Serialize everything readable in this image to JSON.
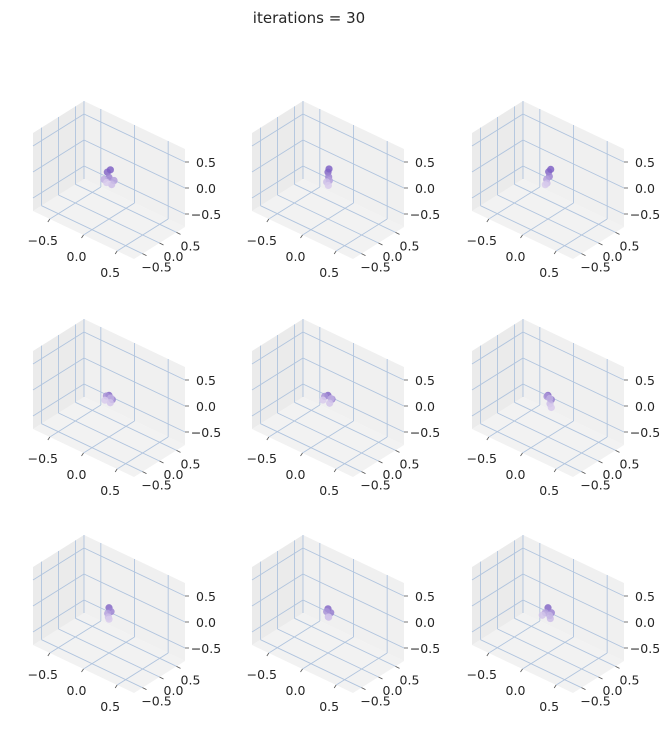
{
  "figure": {
    "title": "iterations = 30"
  },
  "chart_data": {
    "type": "scatter",
    "projection": "3d",
    "layout": {
      "rows": 3,
      "cols": 3
    },
    "title": "iterations = 30",
    "grid": true,
    "colors": {
      "grid": "#b0c4de",
      "pane_floor": "#f2f2f2",
      "pane_wall": "#ebebeb",
      "point_dark": "#7a5cc2",
      "point_light": "#efe6f7"
    },
    "axes": {
      "x": {
        "lim": [
          -0.75,
          0.75
        ],
        "ticks": [
          -0.5,
          0.0,
          0.5
        ],
        "tick_labels": [
          "−0.5",
          "0.0",
          "0.5"
        ]
      },
      "y": {
        "lim": [
          -0.75,
          0.75
        ],
        "ticks": [
          -0.5,
          0.0,
          0.5
        ],
        "tick_labels": [
          "−0.5",
          "0.0",
          "0.5"
        ]
      },
      "z": {
        "lim": [
          -0.75,
          0.75
        ],
        "ticks": [
          -0.5,
          0.0,
          0.5
        ],
        "tick_labels": [
          "−0.5",
          "0.0",
          "0.5"
        ]
      }
    },
    "panels": [
      {
        "panel": 1,
        "points": [
          [
            -0.05,
            0.05,
            0.1,
            0.9
          ],
          [
            0.0,
            0.0,
            0.05,
            0.7
          ],
          [
            0.05,
            0.05,
            0.0,
            0.5
          ],
          [
            -0.05,
            -0.05,
            0.0,
            0.4
          ],
          [
            0.05,
            -0.02,
            -0.05,
            0.3
          ],
          [
            -0.02,
            0.08,
            0.15,
            0.95
          ],
          [
            0.0,
            -0.07,
            -0.02,
            0.2
          ]
        ]
      },
      {
        "panel": 2,
        "points": [
          [
            0.0,
            0.0,
            0.15,
            0.9
          ],
          [
            0.0,
            0.02,
            0.05,
            0.7
          ],
          [
            0.02,
            0.0,
            0.0,
            0.5
          ],
          [
            -0.02,
            0.0,
            -0.05,
            0.3
          ],
          [
            0.0,
            0.03,
            0.2,
            0.95
          ],
          [
            0.02,
            -0.03,
            -0.08,
            0.2
          ]
        ]
      },
      {
        "panel": 3,
        "points": [
          [
            0.0,
            0.02,
            0.15,
            0.9
          ],
          [
            0.02,
            0.0,
            0.08,
            0.7
          ],
          [
            -0.02,
            0.0,
            0.0,
            0.5
          ],
          [
            0.0,
            -0.03,
            -0.05,
            0.3
          ],
          [
            0.02,
            0.04,
            0.2,
            0.95
          ],
          [
            -0.03,
            -0.02,
            -0.1,
            0.2
          ]
        ]
      },
      {
        "panel": 4,
        "points": [
          [
            0.0,
            0.0,
            0.05,
            0.9
          ],
          [
            0.05,
            0.0,
            0.0,
            0.7
          ],
          [
            -0.05,
            0.02,
            0.0,
            0.6
          ],
          [
            0.0,
            0.05,
            -0.02,
            0.4
          ],
          [
            0.04,
            -0.04,
            -0.05,
            0.25
          ],
          [
            -0.04,
            -0.04,
            -0.05,
            0.2
          ]
        ]
      },
      {
        "panel": 5,
        "points": [
          [
            0.0,
            0.0,
            0.05,
            0.9
          ],
          [
            0.05,
            0.02,
            0.0,
            0.7
          ],
          [
            -0.05,
            0.0,
            0.0,
            0.6
          ],
          [
            0.02,
            0.05,
            -0.02,
            0.4
          ],
          [
            0.05,
            -0.05,
            -0.05,
            0.25
          ],
          [
            -0.05,
            -0.05,
            -0.05,
            0.2
          ]
        ]
      },
      {
        "panel": 6,
        "points": [
          [
            0.0,
            0.0,
            0.05,
            0.9
          ],
          [
            0.05,
            0.0,
            0.0,
            0.75
          ],
          [
            -0.03,
            0.03,
            0.0,
            0.6
          ],
          [
            0.06,
            -0.06,
            -0.05,
            0.3
          ],
          [
            0.1,
            -0.1,
            -0.08,
            0.2
          ],
          [
            0.0,
            0.05,
            -0.03,
            0.4
          ]
        ]
      },
      {
        "panel": 7,
        "points": [
          [
            0.0,
            0.0,
            0.12,
            0.9
          ],
          [
            0.02,
            0.02,
            0.05,
            0.7
          ],
          [
            -0.02,
            0.0,
            0.0,
            0.5
          ],
          [
            0.0,
            -0.02,
            -0.05,
            0.3
          ],
          [
            0.0,
            0.0,
            -0.1,
            0.2
          ]
        ]
      },
      {
        "panel": 8,
        "points": [
          [
            0.0,
            0.0,
            0.1,
            0.9
          ],
          [
            0.04,
            0.0,
            0.05,
            0.75
          ],
          [
            -0.03,
            0.02,
            0.02,
            0.6
          ],
          [
            0.02,
            -0.03,
            -0.03,
            0.35
          ],
          [
            0.0,
            0.02,
            -0.07,
            0.25
          ]
        ]
      },
      {
        "panel": 9,
        "points": [
          [
            0.0,
            0.0,
            0.12,
            0.9
          ],
          [
            0.04,
            0.02,
            0.04,
            0.7
          ],
          [
            -0.04,
            0.0,
            0.0,
            0.5
          ],
          [
            0.06,
            -0.05,
            -0.03,
            0.3
          ],
          [
            -0.06,
            -0.05,
            -0.04,
            0.25
          ],
          [
            0.0,
            0.05,
            -0.05,
            0.35
          ]
        ]
      }
    ]
  }
}
